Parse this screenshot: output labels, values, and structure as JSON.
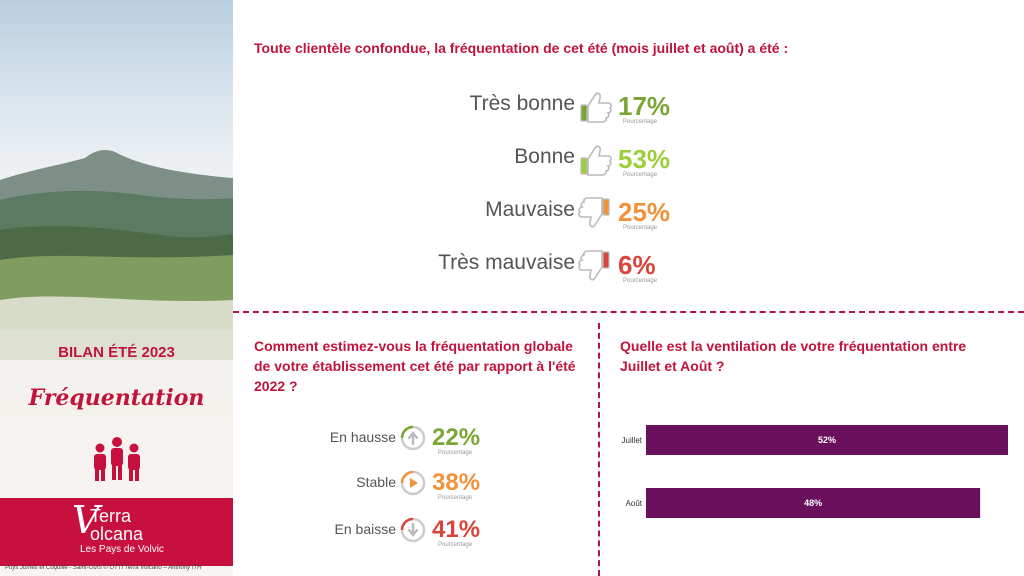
{
  "sidebar": {
    "title": "BILAN ÉTÉ 2023",
    "subtitle": "Fréquentation",
    "brand_line1": "Terra",
    "brand_line2": "olcana",
    "brand_v": "V",
    "brand_tagline": "Les Pays de Volvic",
    "credit": "Puys Jumes et Coquille - Saint-Ours © OTTI Terra Volcano – Anthony ITH"
  },
  "section1": {
    "question": "Toute clientèle confondue, la fréquentation de cet été (mois juillet et août) a été :",
    "items": [
      {
        "label": "Très bonne",
        "value": "17%",
        "sub": "Pourcentage",
        "color": "#7aa636",
        "icon": "thumbs-up-icon"
      },
      {
        "label": "Bonne",
        "value": "53%",
        "sub": "Pourcentage",
        "color": "#9bcf3c",
        "icon": "thumbs-up-icon"
      },
      {
        "label": "Mauvaise",
        "value": "25%",
        "sub": "Pourcentage",
        "color": "#f0923a",
        "icon": "thumbs-down-icon"
      },
      {
        "label": "Très mauvaise",
        "value": "6%",
        "sub": "Pourcentage",
        "color": "#d9453a",
        "icon": "thumbs-down-icon"
      }
    ]
  },
  "section2": {
    "question": "Comment estimez-vous la fréquentation globale de votre établissement cet été par rapport à l'été 2022 ?",
    "items": [
      {
        "label": "En hausse",
        "value": "22%",
        "sub": "Pourcentage",
        "color": "#7aa636",
        "icon": "arrow-up-icon"
      },
      {
        "label": "Stable",
        "value": "38%",
        "sub": "Pourcentage",
        "color": "#f0923a",
        "icon": "arrow-right-icon"
      },
      {
        "label": "En baisse",
        "value": "41%",
        "sub": "Pourcentage",
        "color": "#d9453a",
        "icon": "arrow-down-icon"
      }
    ]
  },
  "section3": {
    "question": "Quelle est la ventilation de votre fréquentation entre Juillet et Août ?"
  },
  "chart_data": {
    "type": "bar",
    "orientation": "horizontal",
    "categories": [
      "Juillet",
      "Août"
    ],
    "values": [
      52,
      48
    ],
    "value_labels": [
      "52%",
      "48%"
    ],
    "color": "#6a0f5c"
  }
}
